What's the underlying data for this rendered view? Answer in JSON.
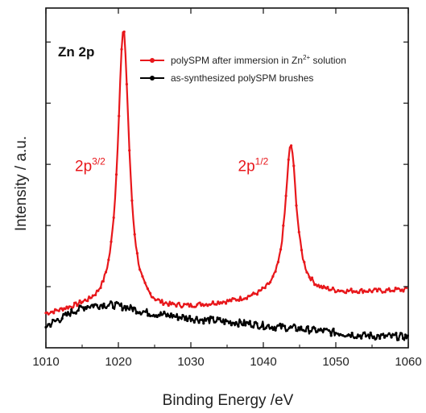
{
  "chart_data": {
    "type": "line",
    "panel_label": "Zn 2p",
    "xlabel": "Binding Energy /eV",
    "ylabel": "Intensity / a.u.",
    "xlim": [
      1010,
      1060
    ],
    "ylim": [
      0,
      100
    ],
    "x_ticks": [
      1010,
      1020,
      1030,
      1040,
      1050,
      1060
    ],
    "x_tick_labels": [
      "1010",
      "1020",
      "1030",
      "1040",
      "1050",
      "1060"
    ],
    "grid": false,
    "legend_position": "top-right",
    "series": [
      {
        "name": "polySPM after immersion in Zn2+ solution",
        "color": "#e8171b",
        "baseline": [
          [
            1010,
            9.6
          ],
          [
            1015,
            11.3
          ],
          [
            1020,
            11.3
          ],
          [
            1025,
            10.7
          ],
          [
            1030,
            11.5
          ],
          [
            1035,
            12.9
          ],
          [
            1040,
            14.5
          ],
          [
            1045,
            15.5
          ],
          [
            1050,
            15.9
          ],
          [
            1055,
            16.4
          ],
          [
            1060,
            17.0
          ]
        ],
        "peaks": [
          {
            "center": 1020.7,
            "height": 82.0,
            "width": 0.95
          },
          {
            "center": 1043.8,
            "height": 44.2,
            "width": 0.95
          }
        ]
      },
      {
        "name": "as-synthesized polySPM brushes",
        "color": "#000000",
        "points": [
          [
            1010,
            6.4
          ],
          [
            1012,
            8.6
          ],
          [
            1014,
            11.0
          ],
          [
            1016,
            12.4
          ],
          [
            1018,
            12.7
          ],
          [
            1020,
            12.4
          ],
          [
            1022,
            11.5
          ],
          [
            1024,
            10.4
          ],
          [
            1026,
            9.8
          ],
          [
            1028,
            9.2
          ],
          [
            1030,
            8.7
          ],
          [
            1032,
            8.2
          ],
          [
            1034,
            7.9
          ],
          [
            1036,
            7.5
          ],
          [
            1038,
            7.1
          ],
          [
            1040,
            6.6
          ],
          [
            1042,
            6.1
          ],
          [
            1044,
            5.8
          ],
          [
            1046,
            5.3
          ],
          [
            1048,
            5.0
          ],
          [
            1050,
            4.4
          ],
          [
            1052,
            4.0
          ],
          [
            1054,
            3.6
          ],
          [
            1056,
            3.4
          ],
          [
            1058,
            3.3
          ],
          [
            1060,
            3.2
          ]
        ]
      }
    ],
    "legend": {
      "red_prefix": "polySPM after immersion in Zn",
      "red_sup": "2+",
      "red_suffix": " solution",
      "black": "as-synthesized polySPM brushes"
    },
    "annotations": [
      {
        "id": "peak-3-2",
        "base": "2p",
        "sup": "3/2",
        "color": "#e8171b",
        "x": 1014.0,
        "y": 52.0
      },
      {
        "id": "peak-1-2",
        "base": "2p",
        "sup": "1/2",
        "color": "#e8171b",
        "x": 1036.5,
        "y": 52.0
      }
    ]
  }
}
